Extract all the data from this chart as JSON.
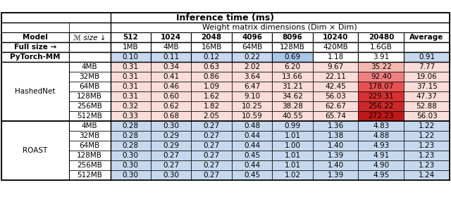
{
  "title": "Inference time (ms)",
  "subtitle": "Weight matrix dimensions (Dim × Dim)",
  "col_headers": [
    "512",
    "1024",
    "2048",
    "4096",
    "8096",
    "10240",
    "20480",
    "Average"
  ],
  "row_header1": "Model",
  "row_header2": "ℳ size ↓",
  "fullsize_label": "Full size →",
  "fullsize_sizes": [
    "1MB",
    "4MB",
    "16MB",
    "64MB",
    "128MB",
    "420MB",
    "1.6GB",
    ""
  ],
  "pytorch_label": "PyTorch-MM",
  "pytorch_values": [
    "0.10",
    "0.11",
    "0.12",
    "0.22",
    "0.69",
    "1.18",
    "3.91",
    "0.91"
  ],
  "hashednet_label": "HashedNet",
  "hashednet_sizes": [
    "4MB",
    "32MB",
    "64MB",
    "128MB",
    "256MB",
    "512MB"
  ],
  "hashednet_values": [
    [
      "0.31",
      "0.34",
      "0.63",
      "2.02",
      "6.20",
      "9.67",
      "35.22",
      "7.77"
    ],
    [
      "0.31",
      "0.41",
      "0.86",
      "3.64",
      "13.66",
      "22.11",
      "92.40",
      "19.06"
    ],
    [
      "0.31",
      "0.46",
      "1.09",
      "6.47",
      "31.21",
      "42.45",
      "178.07",
      "37.15"
    ],
    [
      "0.31",
      "0.60",
      "1.62",
      "9.10",
      "34.62",
      "56.03",
      "229.31",
      "47.37"
    ],
    [
      "0.32",
      "0.62",
      "1.82",
      "10.25",
      "38.28",
      "62.67",
      "256.22",
      "52.88"
    ],
    [
      "0.33",
      "0.68",
      "2.05",
      "10.59",
      "40.55",
      "65.74",
      "272.23",
      "56.03"
    ]
  ],
  "roast_label": "ROAST",
  "roast_sizes": [
    "4MB",
    "32MB",
    "64MB",
    "128MB",
    "256MB",
    "512MB"
  ],
  "roast_values": [
    [
      "0.28",
      "0.30",
      "0.27",
      "0.48",
      "0.99",
      "1.36",
      "4.83",
      "1.22"
    ],
    [
      "0.28",
      "0.29",
      "0.27",
      "0.44",
      "1.01",
      "1.38",
      "4.88",
      "1.22"
    ],
    [
      "0.28",
      "0.29",
      "0.27",
      "0.44",
      "1.00",
      "1.40",
      "4.93",
      "1.23"
    ],
    [
      "0.30",
      "0.27",
      "0.27",
      "0.45",
      "1.01",
      "1.39",
      "4.91",
      "1.23"
    ],
    [
      "0.30",
      "0.27",
      "0.27",
      "0.44",
      "1.01",
      "1.40",
      "4.90",
      "1.23"
    ],
    [
      "0.30",
      "0.30",
      "0.27",
      "0.45",
      "1.02",
      "1.39",
      "4.95",
      "1.24"
    ]
  ],
  "blue_light": "#C5D8EE",
  "blue_medium": "#A8C8E8",
  "blue_dark": "#6BAED6",
  "pink_light": "#FADCD9",
  "red_20480_hn": [
    "#F5B8B0",
    "#F08080",
    "#E85050",
    "#D83030",
    "#CC2828",
    "#C01818"
  ],
  "white": "#FFFFFF",
  "figsize": [
    6.4,
    2.9
  ],
  "dpi": 100
}
